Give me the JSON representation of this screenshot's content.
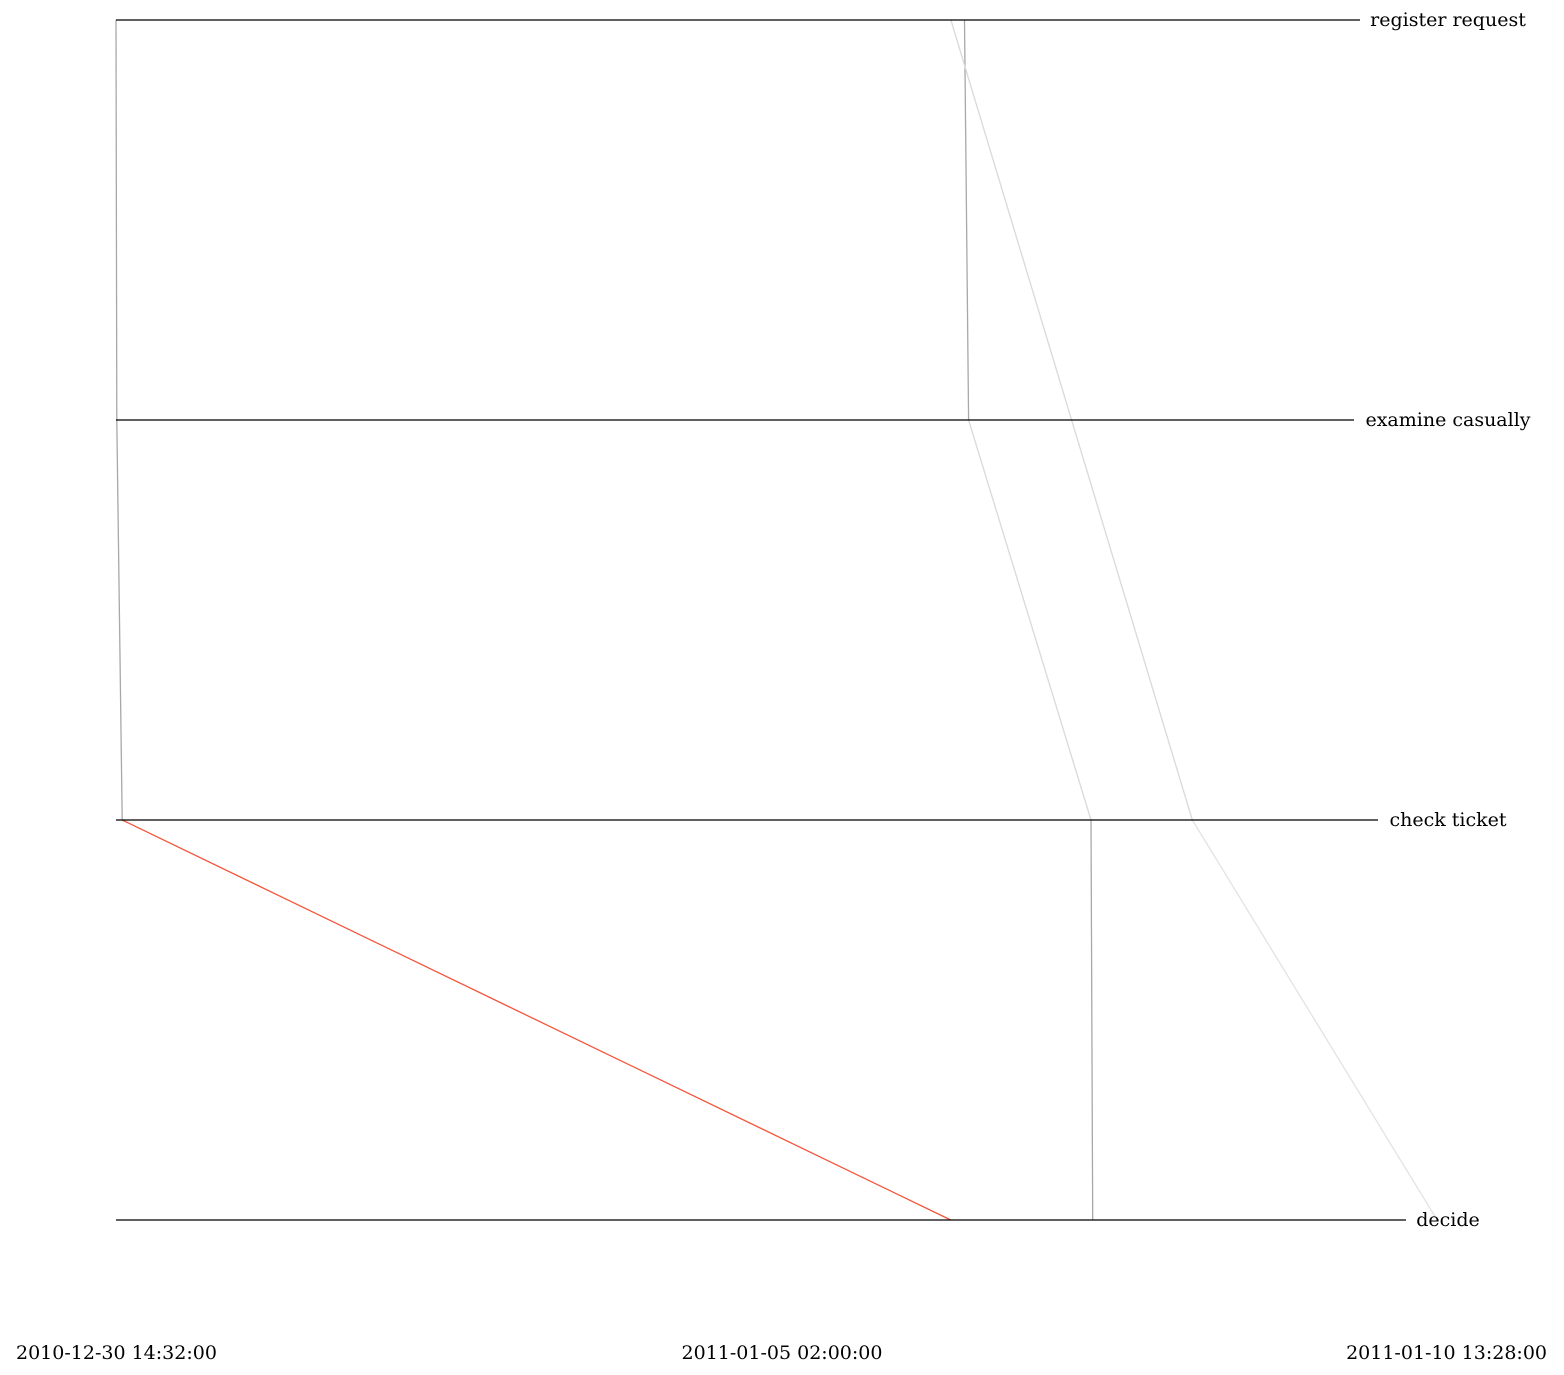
{
  "chart_data": {
    "type": "performance-spectrum",
    "activities": [
      "register request",
      "examine casually",
      "check ticket",
      "decide"
    ],
    "time_labels": [
      "2010-12-30 14:32:00",
      "2011-01-05 02:00:00",
      "2011-01-10 13:28:00"
    ],
    "time_range": [
      "2010-12-30T14:32:00",
      "2011-01-10T13:28:00"
    ],
    "segments": [
      {
        "from": "register request",
        "to": "examine casually",
        "start": "2010-12-30T14:32:00",
        "end": "2010-12-30T14:42:00",
        "color": "#a8a8a8"
      },
      {
        "from": "examine casually",
        "to": "check ticket",
        "start": "2010-12-30T14:42:00",
        "end": "2010-12-30T15:45:00",
        "color": "#a8a8a8"
      },
      {
        "from": "check ticket",
        "to": "decide",
        "start": "2010-12-30T15:45:00",
        "end": "2011-01-06T11:18:00",
        "color": "#f4553b"
      },
      {
        "from": "register request",
        "to": "examine casually",
        "start": "2011-01-06T14:02:00",
        "end": "2011-01-06T14:50:00",
        "color": "#a8a8a8"
      },
      {
        "from": "examine casually",
        "to": "check ticket",
        "start": "2011-01-06T14:50:00",
        "end": "2011-01-07T15:00:00",
        "color": "#d9d9d9"
      },
      {
        "from": "check ticket",
        "to": "decide",
        "start": "2011-01-07T15:00:00",
        "end": "2011-01-07T15:20:00",
        "color": "#a8a8a8"
      },
      {
        "from": "register request",
        "to": "check ticket",
        "start": "2011-01-06T11:20:00",
        "end": "2011-01-08T11:00:00",
        "color": "#d9d9d9"
      },
      {
        "from": "check ticket",
        "to": "decide",
        "start": "2011-01-08T11:00:00",
        "end": "2011-01-10T11:20:00",
        "color": "#e3e3e3"
      }
    ]
  }
}
